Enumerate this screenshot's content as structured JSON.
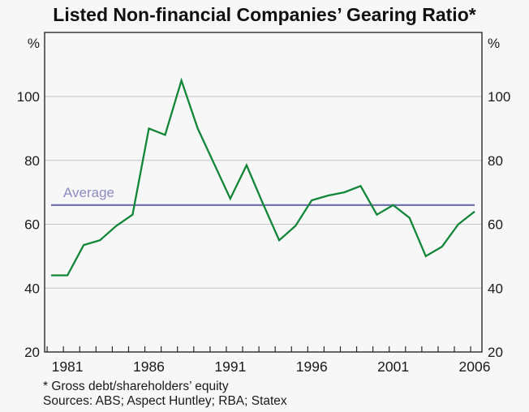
{
  "page": {
    "background": "#f7f7f7"
  },
  "chart": {
    "title": "Listed Non-financial Companies’ Gearing Ratio*",
    "footnote": "* Gross debt/shareholders’ equity",
    "sources": "Sources: ABS; Aspect Huntley; RBA; Statex",
    "unit_left": "%",
    "unit_right": "%"
  },
  "chart_data": {
    "type": "line",
    "title": "Listed Non-financial Companies’ Gearing Ratio*",
    "xlabel": "",
    "ylabel": "%",
    "ylim": [
      20,
      120
    ],
    "grid": "horizontal",
    "x": [
      1980,
      1981,
      1982,
      1983,
      1984,
      1985,
      1986,
      1987,
      1988,
      1989,
      1990,
      1991,
      1992,
      1993,
      1994,
      1995,
      1996,
      1997,
      1998,
      1999,
      2000,
      2001,
      2002,
      2003,
      2004,
      2005,
      2006
    ],
    "series": [
      {
        "name": "Gearing ratio (gross debt / shareholders' equity)",
        "color": "#128638",
        "values": [
          44,
          44,
          53.5,
          55,
          59.5,
          63,
          90,
          88,
          105,
          90,
          79,
          68,
          78.5,
          66.5,
          55,
          59.5,
          67.5,
          69,
          70,
          72,
          63,
          66,
          62,
          50,
          53,
          60,
          64
        ]
      }
    ],
    "average": {
      "label": "Average",
      "value": 66,
      "line_color": "#7372ad",
      "label_color": "#8e8cc2"
    },
    "y_axis": {
      "tick_labels": [
        20,
        40,
        60,
        80,
        100
      ],
      "unit": "%",
      "sides": "both"
    },
    "x_axis": {
      "labeled_years": [
        1981,
        1986,
        1991,
        1996,
        2001,
        2006
      ],
      "minor_tick_every_year": true,
      "range": [
        1980,
        2006
      ]
    },
    "colors": {
      "text": "#1a1a1a",
      "frame": "#2a2a2a",
      "grid": "#c6c6c6"
    }
  }
}
